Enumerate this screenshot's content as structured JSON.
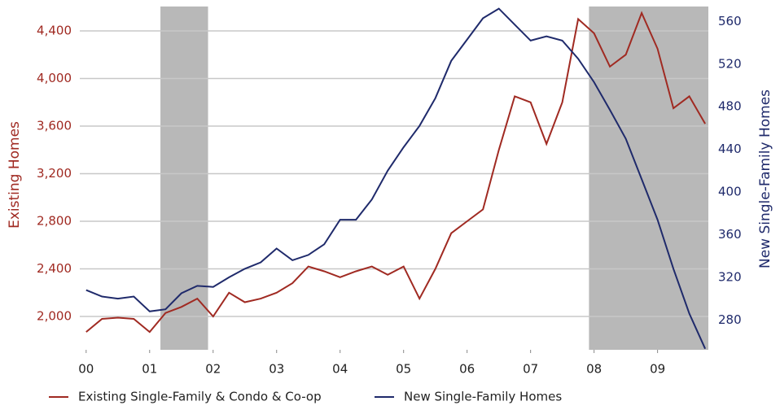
{
  "chart_data": {
    "type": "line",
    "y_label": "Existing Homes",
    "y2_label": "New Single-Family Homes",
    "x": [
      2000,
      2000.25,
      2000.5,
      2000.75,
      2001,
      2001.25,
      2001.5,
      2001.75,
      2002,
      2002.25,
      2002.5,
      2002.75,
      2003,
      2003.25,
      2003.5,
      2003.75,
      2004,
      2004.25,
      2004.5,
      2004.75,
      2005,
      2005.25,
      2005.5,
      2005.75,
      2006,
      2006.25,
      2006.5,
      2006.75,
      2007,
      2007.25,
      2007.5,
      2007.75,
      2008,
      2008.25,
      2008.5,
      2008.75,
      2009,
      2009.25,
      2009.5,
      2009.75
    ],
    "series": [
      {
        "name": "Existing Single-Family & Condo & Co-op",
        "color": "#a02a22",
        "values": [
          1870,
          1980,
          1990,
          1980,
          1870,
          2030,
          2080,
          2150,
          2000,
          2200,
          2120,
          2150,
          2200,
          2280,
          2420,
          2380,
          2330,
          2380,
          2420,
          2350,
          2420,
          2150,
          2400,
          2700,
          2800,
          2900,
          3400,
          3850,
          3800,
          3450,
          3800,
          4500,
          4380,
          4100,
          4200,
          4550,
          4250,
          3750,
          3850,
          3620
        ]
      },
      {
        "name": "New Single-Family Homes",
        "color": "#1f2a6b",
        "axis": "y2",
        "values": [
          308,
          302,
          300,
          302,
          288,
          290,
          305,
          312,
          311,
          320,
          328,
          334,
          347,
          336,
          341,
          351,
          374,
          374,
          393,
          420,
          442,
          462,
          488,
          523,
          543,
          563,
          572,
          557,
          542,
          546,
          542,
          525,
          503,
          477,
          450,
          412,
          374,
          328,
          286,
          253
        ]
      }
    ],
    "xlim": [
      1999.9,
      2009.8
    ],
    "xticks": [
      {
        "value": 2000,
        "label": "00"
      },
      {
        "value": 2001,
        "label": "01"
      },
      {
        "value": 2002,
        "label": "02"
      },
      {
        "value": 2003,
        "label": "03"
      },
      {
        "value": 2004,
        "label": "04"
      },
      {
        "value": 2005,
        "label": "05"
      },
      {
        "value": 2006,
        "label": "06"
      },
      {
        "value": 2007,
        "label": "07"
      },
      {
        "value": 2008,
        "label": "08"
      },
      {
        "value": 2009,
        "label": "09"
      }
    ],
    "ylim": [
      1720,
      4605
    ],
    "yticks": [
      {
        "value": 2000,
        "label": "2,000"
      },
      {
        "value": 2400,
        "label": "2,400"
      },
      {
        "value": 2800,
        "label": "2,800"
      },
      {
        "value": 3200,
        "label": "3,200"
      },
      {
        "value": 3600,
        "label": "3,600"
      },
      {
        "value": 4000,
        "label": "4,000"
      },
      {
        "value": 4400,
        "label": "4,400"
      }
    ],
    "y2lim": [
      252,
      574
    ],
    "y2ticks": [
      280,
      320,
      360,
      400,
      440,
      480,
      520,
      560
    ],
    "shaded_ranges": [
      [
        2001.17,
        2001.92
      ],
      [
        2007.92,
        2009.8
      ]
    ],
    "shade_color": "#b8b8b8",
    "grid": true
  }
}
